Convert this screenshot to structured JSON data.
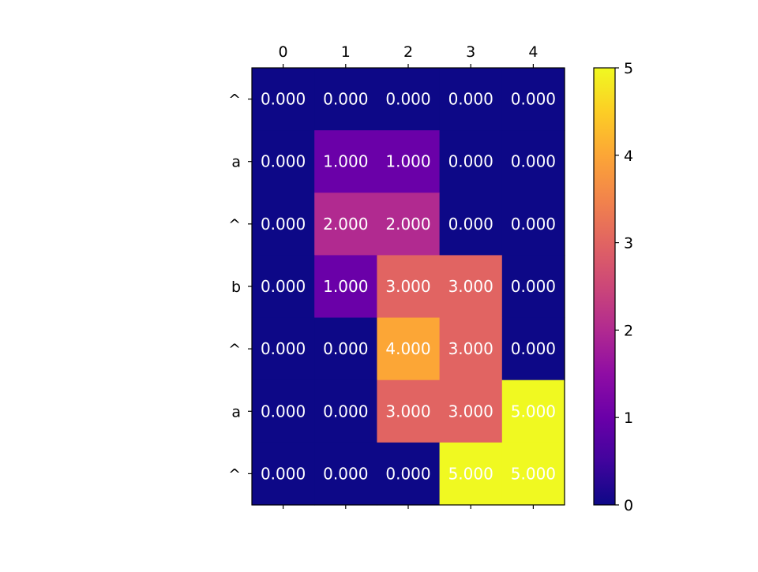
{
  "chart_data": {
    "type": "heatmap",
    "title": "",
    "xlabel": "",
    "ylabel": "",
    "x_tick_labels": [
      "0",
      "1",
      "2",
      "3",
      "4"
    ],
    "y_tick_labels": [
      "^",
      "a",
      "^",
      "b",
      "^",
      "a",
      "^"
    ],
    "x_tick_position": "top",
    "values": [
      [
        0,
        0,
        0,
        0,
        0
      ],
      [
        0,
        1,
        1,
        0,
        0
      ],
      [
        0,
        2,
        2,
        0,
        0
      ],
      [
        0,
        1,
        3,
        3,
        0
      ],
      [
        0,
        0,
        4,
        3,
        0
      ],
      [
        0,
        0,
        3,
        3,
        5
      ],
      [
        0,
        0,
        0,
        5,
        5
      ]
    ],
    "cell_label_format": "0.000",
    "colormap": "plasma",
    "vmin": 0,
    "vmax": 5,
    "colorbar": {
      "ticks": [
        "0",
        "1",
        "2",
        "3",
        "4",
        "5"
      ],
      "placement": "right"
    },
    "grid": false
  }
}
